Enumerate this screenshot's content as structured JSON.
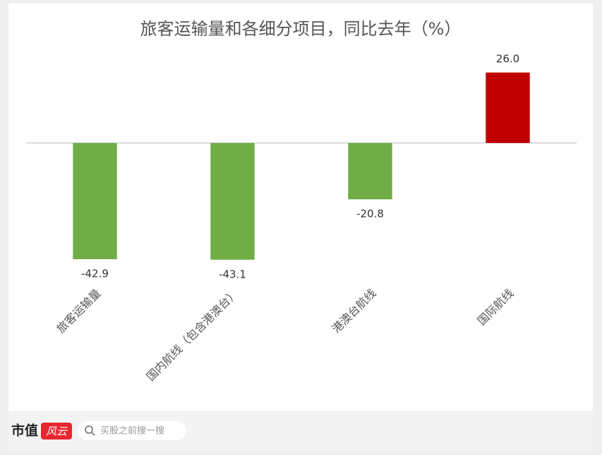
{
  "chart_data": {
    "type": "bar",
    "title": "旅客运输量和各细分项目，同比去年（%）",
    "categories": [
      "旅客运输量",
      "国内航线（包含港澳台）",
      "港澳台航线",
      "国际航线"
    ],
    "values": [
      -42.9,
      -43.1,
      -20.8,
      26.0
    ],
    "value_labels": [
      "-42.9",
      "-43.1",
      "-20.8",
      "26.0"
    ],
    "colors": [
      "#70ad47",
      "#70ad47",
      "#70ad47",
      "#c00000"
    ],
    "ylim": [
      -50,
      30
    ]
  },
  "footer": {
    "brand": "市值",
    "brand_mark": "风云",
    "search_placeholder": "买股之前搜一搜"
  }
}
